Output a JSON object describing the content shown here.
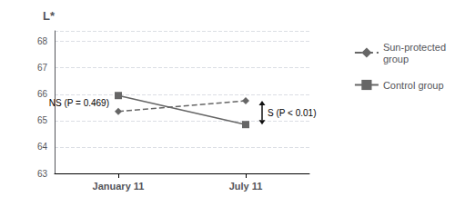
{
  "chart_data": {
    "type": "line",
    "categories": [
      "January 11",
      "July 11"
    ],
    "series": [
      {
        "name": "Sun-protected\ngroup",
        "color": "#666666",
        "values": [
          65.35,
          65.75
        ],
        "marker": "diamond",
        "line_style": "dashed"
      },
      {
        "name": "Control group",
        "color": "#666666",
        "values": [
          65.95,
          64.85
        ],
        "marker": "square",
        "line_style": "solid"
      }
    ],
    "y_label": "L*",
    "ylim": [
      63,
      68.4
    ],
    "yticks": [
      63,
      64,
      65,
      66,
      67,
      68
    ],
    "grid": true,
    "legend": "right",
    "annotations": [
      {
        "text": "NS (P = 0.469)",
        "x": "January 11"
      },
      {
        "text": "S (P < 0.01)",
        "x": "July 11",
        "arrow": true,
        "color": "#111111"
      }
    ]
  }
}
